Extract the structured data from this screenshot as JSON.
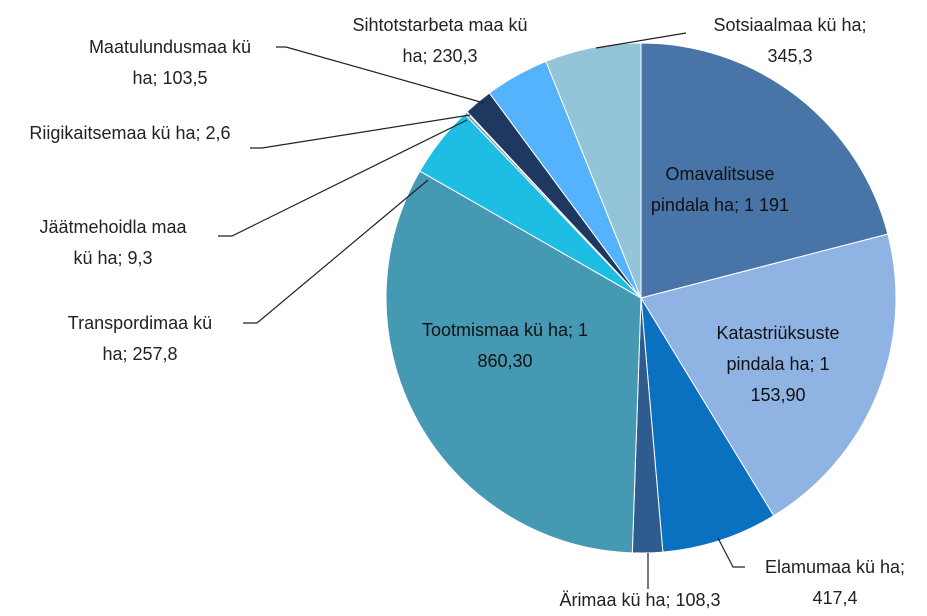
{
  "chart_data": {
    "type": "pie",
    "categories": [
      "Omavalitsuse pindala ha;",
      "Katastriüksuste pindala ha;",
      "Elamumaa kü ha;",
      "Ärimaa kü ha;",
      "Tootmismaa kü ha;",
      "Transpordimaa kü ha;",
      "Jäätmehoidla maa kü ha;",
      "Riigikaitsemaa kü ha;",
      "Maatulundusmaa kü ha;",
      "Sihtotstarbeta maa kü ha;",
      "Sotsiaalmaa kü ha;"
    ],
    "values": [
      1191,
      1153.9,
      417.4,
      108.3,
      1860.3,
      257.8,
      9.3,
      2.6,
      103.5,
      230.3,
      345.3
    ],
    "value_labels": [
      "1 191",
      "1 153,90",
      "417,4",
      "108,3",
      "1 860,30",
      "257,8",
      "9,3",
      "2,6",
      "103,5",
      "230,3",
      "345,3"
    ],
    "colors": [
      "#4874a8",
      "#8fb3e2",
      "#0a70c0",
      "#2f5b8e",
      "#4599b3",
      "#1ebde3",
      "#6a93b3",
      "#b8c9de",
      "#1f3860",
      "#55b3fd",
      "#93c4d7"
    ]
  }
}
